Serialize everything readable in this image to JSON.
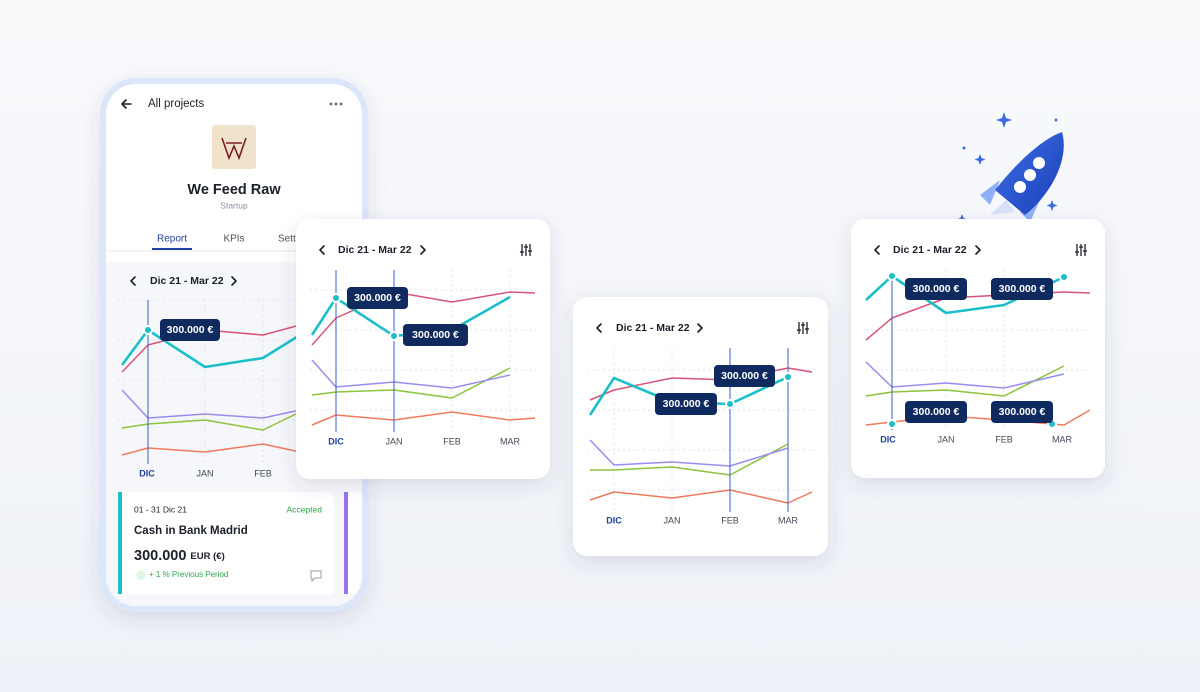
{
  "phone": {
    "title": "All projects",
    "project": {
      "name": "We Feed Raw",
      "category": "Startup"
    },
    "tabs": [
      "Report",
      "KPIs",
      "Settings"
    ],
    "period": "Dic 21 - Mar 22",
    "tooltip": "300.000 €",
    "months": [
      "DIC",
      "JAN",
      "FEB"
    ],
    "card": {
      "dates": "01 - 31 Dic 21",
      "status": "Accepted",
      "title": "Cash in Bank Madrid",
      "amount": "300.000",
      "currency": "EUR (€)",
      "change": "+ 1 % Previous Period"
    }
  },
  "panels": [
    {
      "period": "Dic 21 - Mar 22",
      "tooltips": [
        "300.000 €",
        "300.000 €"
      ],
      "months": [
        "DIC",
        "JAN",
        "FEB",
        "MAR"
      ]
    },
    {
      "period": "Dic 21 - Mar 22",
      "tooltips": [
        "300.000 €",
        "300.000 €"
      ],
      "months": [
        "DIC",
        "JAN",
        "FEB",
        "MAR"
      ]
    },
    {
      "period": "Dic 21 - Mar 22",
      "tooltips": [
        "300.000 €",
        "300.000 €",
        "300.000 €",
        "300.000 €"
      ],
      "months": [
        "DIC",
        "JAN",
        "FEB",
        "MAR"
      ]
    }
  ]
}
